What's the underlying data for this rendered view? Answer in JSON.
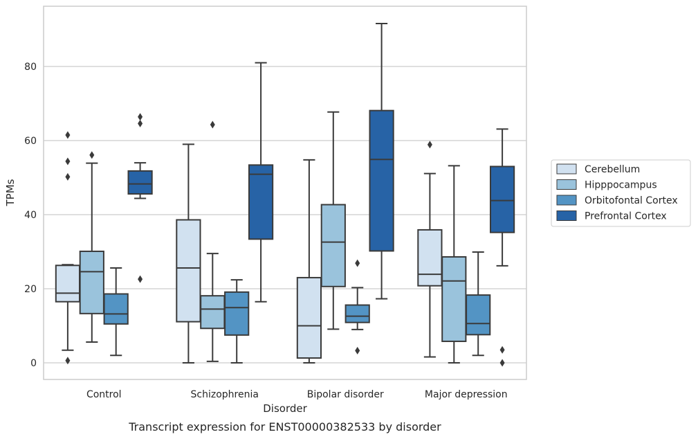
{
  "chart_data": {
    "type": "box",
    "title": "",
    "caption": "Transcript expression for ENST00000382533 by disorder",
    "xlabel": "Disorder",
    "ylabel": "TPMs",
    "ylim": [
      -4.5,
      96
    ],
    "yticks": [
      0,
      20,
      40,
      60,
      80
    ],
    "grid": true,
    "legend_position": "right",
    "categories": [
      "Control",
      "Schizophrenia",
      "Bipolar disorder",
      "Major depression"
    ],
    "colors": {
      "Cerebellum": "#d1e1f0",
      "Hipppocampus": "#9ac3dc",
      "Orbitofontal Cortex": "#5394c4",
      "Prefrontal Cortex": "#2763a6",
      "stroke": "#3a3a3a",
      "grid": "#cccccc"
    },
    "series": [
      {
        "name": "Cerebellum",
        "boxes": [
          {
            "whisker_low": 3.4,
            "q1": 16.5,
            "median": 18.8,
            "q3": 26.3,
            "whisker_high": 26.5,
            "outliers": [
              0.6,
              50.2,
              54.4,
              61.5
            ]
          },
          {
            "whisker_low": 0.0,
            "q1": 11.1,
            "median": 25.6,
            "q3": 38.6,
            "whisker_high": 59.0,
            "outliers": []
          },
          {
            "whisker_low": 0.0,
            "q1": 1.3,
            "median": 10.0,
            "q3": 23.0,
            "whisker_high": 54.8,
            "outliers": []
          },
          {
            "whisker_low": 1.6,
            "q1": 20.8,
            "median": 23.9,
            "q3": 35.9,
            "whisker_high": 51.1,
            "outliers": [
              58.9
            ]
          }
        ]
      },
      {
        "name": "Hipppocampus",
        "boxes": [
          {
            "whisker_low": 5.6,
            "q1": 13.3,
            "median": 24.6,
            "q3": 30.1,
            "whisker_high": 53.9,
            "outliers": [
              56.1
            ]
          },
          {
            "whisker_low": 0.4,
            "q1": 9.3,
            "median": 14.5,
            "q3": 18.1,
            "whisker_high": 29.5,
            "outliers": [
              64.3
            ]
          },
          {
            "whisker_low": 9.1,
            "q1": 20.6,
            "median": 32.6,
            "q3": 42.7,
            "whisker_high": 67.7,
            "outliers": []
          },
          {
            "whisker_low": 0.0,
            "q1": 5.8,
            "median": 22.1,
            "q3": 28.6,
            "whisker_high": 53.2,
            "outliers": []
          }
        ]
      },
      {
        "name": "Orbitofontal Cortex",
        "boxes": [
          {
            "whisker_low": 2.0,
            "q1": 10.5,
            "median": 13.2,
            "q3": 18.6,
            "whisker_high": 25.6,
            "outliers": []
          },
          {
            "whisker_low": 0.0,
            "q1": 7.5,
            "median": 14.9,
            "q3": 19.1,
            "whisker_high": 22.4,
            "outliers": []
          },
          {
            "whisker_low": 9.0,
            "q1": 10.9,
            "median": 12.6,
            "q3": 15.6,
            "whisker_high": 20.3,
            "outliers": [
              3.3,
              26.9
            ]
          },
          {
            "whisker_low": 2.0,
            "q1": 7.6,
            "median": 10.6,
            "q3": 18.3,
            "whisker_high": 29.9,
            "outliers": []
          }
        ]
      },
      {
        "name": "Prefrontal Cortex",
        "boxes": [
          {
            "whisker_low": 44.4,
            "q1": 45.6,
            "median": 48.3,
            "q3": 51.8,
            "whisker_high": 54.0,
            "outliers": [
              22.6,
              64.6,
              66.4
            ]
          },
          {
            "whisker_low": 16.5,
            "q1": 33.4,
            "median": 50.9,
            "q3": 53.4,
            "whisker_high": 81.0,
            "outliers": []
          },
          {
            "whisker_low": 17.3,
            "q1": 30.2,
            "median": 54.9,
            "q3": 68.1,
            "whisker_high": 91.6,
            "outliers": []
          },
          {
            "whisker_low": 26.2,
            "q1": 35.2,
            "median": 43.8,
            "q3": 53.0,
            "whisker_high": 63.1,
            "outliers": [
              0.0,
              3.5
            ]
          }
        ]
      }
    ]
  }
}
